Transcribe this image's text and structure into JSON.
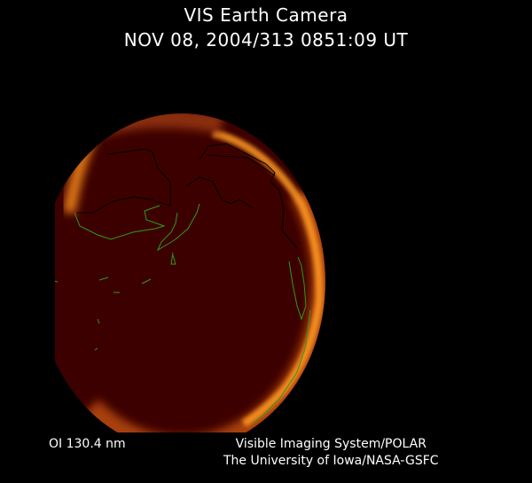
{
  "header": {
    "title": "VIS Earth Camera",
    "timestamp": "NOV 08, 2004/313 0851:09 UT"
  },
  "image": {
    "subject": "earth-disc-aurora",
    "colors": {
      "disc": "#3d0000",
      "aurora": "#ff9a20",
      "coastline_day": "#2e9a1a",
      "coastline_night": "#000000"
    }
  },
  "footer": {
    "wavelength": "OI  130.4 nm",
    "credit_line1": "Visible Imaging System/POLAR",
    "credit_line2": "The University of Iowa/NASA-GSFC"
  }
}
